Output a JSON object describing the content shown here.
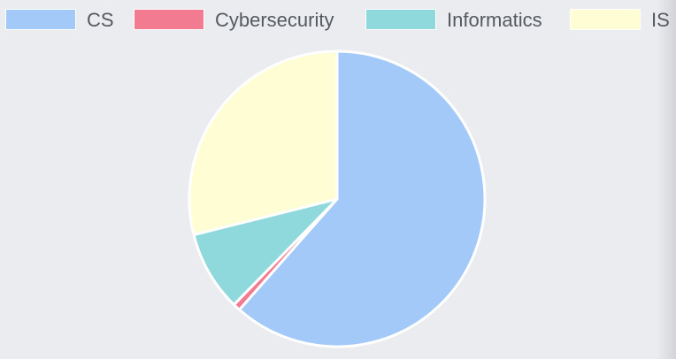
{
  "chart_data": {
    "type": "pie",
    "title": "",
    "legend_position": "top",
    "slices": [
      {
        "label": "CS",
        "value": 61.5,
        "color": "#a3c9f9"
      },
      {
        "label": "Cybersecurity",
        "value": 0.8,
        "color": "#f27a91"
      },
      {
        "label": "Informatics",
        "value": 8.8,
        "color": "#8fd8dc"
      },
      {
        "label": "IS",
        "value": 28.9,
        "color": "#fefdd4"
      }
    ],
    "slice_border_color": "#ffffff"
  }
}
